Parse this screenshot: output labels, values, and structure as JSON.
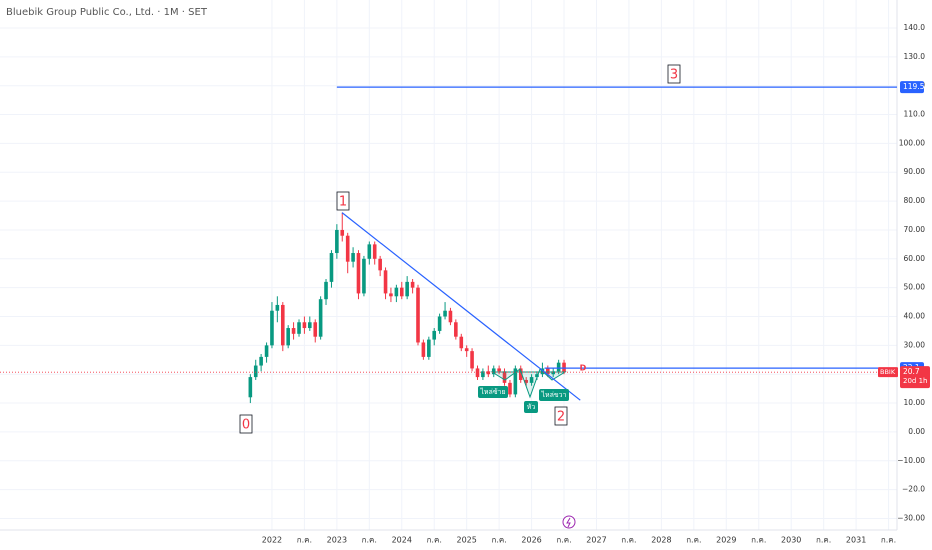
{
  "chart_data": {
    "type": "candlestick",
    "title": "Bluebik Group Public Co., Ltd. · 1M · SET",
    "symbol": "BBIK",
    "countdown": "20d 1h",
    "up_color": "#089981",
    "down_color": "#f23645",
    "line_color": "#2962ff",
    "xlim": [
      2017.81,
      2031.63
    ],
    "ylim": [
      -34,
      149.7
    ],
    "grid": true,
    "xticks": [
      {
        "value": 2022,
        "label": "2022"
      },
      {
        "value": 2022.5,
        "label": "ก.ค."
      },
      {
        "value": 2023,
        "label": "2023"
      },
      {
        "value": 2023.5,
        "label": "ก.ค."
      },
      {
        "value": 2024,
        "label": "2024"
      },
      {
        "value": 2024.5,
        "label": "ก.ค."
      },
      {
        "value": 2025,
        "label": "2025"
      },
      {
        "value": 2025.5,
        "label": "ก.ค."
      },
      {
        "value": 2026,
        "label": "2026"
      },
      {
        "value": 2026.5,
        "label": "ก.ค."
      },
      {
        "value": 2027,
        "label": "2027"
      },
      {
        "value": 2027.5,
        "label": "ก.ค."
      },
      {
        "value": 2028,
        "label": "2028"
      },
      {
        "value": 2028.5,
        "label": "ก.ค."
      },
      {
        "value": 2029,
        "label": "2029"
      },
      {
        "value": 2029.5,
        "label": "ก.ค."
      },
      {
        "value": 2030,
        "label": "2030"
      },
      {
        "value": 2030.5,
        "label": "ก.ค."
      },
      {
        "value": 2031,
        "label": "2031"
      },
      {
        "value": 2031.5,
        "label": "ก.ค."
      }
    ],
    "yticks": [
      {
        "value": 140,
        "label": "140.0"
      },
      {
        "value": 130,
        "label": "130.0"
      },
      {
        "value": 120,
        "label": "120.0"
      },
      {
        "value": 110,
        "label": "110.0"
      },
      {
        "value": 100,
        "label": "100.00"
      },
      {
        "value": 90,
        "label": "90.00"
      },
      {
        "value": 80,
        "label": "80.00"
      },
      {
        "value": 70,
        "label": "70.00"
      },
      {
        "value": 60,
        "label": "60.00"
      },
      {
        "value": 50,
        "label": "50.00"
      },
      {
        "value": 40,
        "label": "40.00"
      },
      {
        "value": 30,
        "label": "30.00"
      },
      {
        "value": 20,
        "label": "20.00"
      },
      {
        "value": 10,
        "label": "10.00"
      },
      {
        "value": 0,
        "label": "0.00"
      },
      {
        "value": -10,
        "label": "−10.00"
      },
      {
        "value": -20,
        "label": "−20.0"
      },
      {
        "value": -30,
        "label": "−30.00"
      }
    ],
    "candles": {
      "x": [
        2021.667,
        2021.75,
        2021.833,
        2021.917,
        2022.0,
        2022.083,
        2022.167,
        2022.25,
        2022.333,
        2022.417,
        2022.5,
        2022.583,
        2022.667,
        2022.75,
        2022.833,
        2022.917,
        2023.0,
        2023.083,
        2023.167,
        2023.25,
        2023.333,
        2023.417,
        2023.5,
        2023.583,
        2023.667,
        2023.75,
        2023.833,
        2023.917,
        2024.0,
        2024.083,
        2024.167,
        2024.25,
        2024.333,
        2024.417,
        2024.5,
        2024.583,
        2024.667,
        2024.75,
        2024.833,
        2024.917,
        2025.0,
        2025.083,
        2025.167,
        2025.25,
        2025.333,
        2025.417,
        2025.5,
        2025.583,
        2025.667,
        2025.75,
        2025.833,
        2025.917,
        2026.0,
        2026.083,
        2026.167,
        2026.25,
        2026.333,
        2026.417,
        2026.5
      ],
      "open": [
        12,
        19,
        23,
        26,
        30,
        42,
        44,
        30,
        36,
        34,
        38,
        36,
        38,
        33,
        46,
        52,
        62,
        70,
        68,
        59,
        62,
        48,
        60,
        65,
        60,
        56,
        48,
        47,
        50,
        47,
        52,
        50,
        31,
        26,
        32,
        35,
        40,
        42,
        38,
        33,
        29,
        28,
        22,
        19,
        21,
        20,
        22,
        21,
        17,
        13,
        22,
        18,
        17,
        19,
        20,
        22,
        20,
        21,
        24
      ],
      "high": [
        20,
        25,
        27,
        31,
        45,
        47,
        45,
        37,
        38,
        39,
        40,
        40,
        39,
        47,
        53,
        63,
        72,
        76,
        69,
        64,
        63,
        61,
        66,
        66,
        61,
        57,
        50,
        51,
        52,
        54,
        53,
        51,
        32,
        33,
        36,
        41,
        45,
        43,
        39,
        34,
        30,
        29,
        23,
        22,
        23,
        23,
        23,
        22,
        18,
        23,
        23,
        19,
        20,
        21,
        24,
        23,
        22,
        25,
        25
      ],
      "low": [
        10,
        18,
        21,
        24,
        29,
        38,
        28,
        29,
        32,
        33,
        34,
        35,
        31,
        32,
        44,
        50,
        60,
        66,
        55,
        57,
        46,
        47,
        58,
        58,
        54,
        46,
        45,
        45,
        46,
        46,
        48,
        30,
        25,
        25,
        30,
        34,
        39,
        37,
        32,
        28,
        26,
        21,
        18,
        18,
        19,
        19,
        20,
        16,
        12,
        12,
        17,
        16,
        16,
        18,
        19,
        19,
        19,
        20,
        20
      ],
      "close": [
        19,
        23,
        26,
        30,
        42,
        44,
        30,
        36,
        34,
        38,
        36,
        38,
        33,
        46,
        52,
        62,
        70,
        68,
        59,
        62,
        48,
        60,
        65,
        60,
        56,
        48,
        47,
        50,
        47,
        52,
        50,
        31,
        26,
        32,
        35,
        40,
        42,
        38,
        33,
        29,
        28,
        22,
        19,
        21,
        20,
        22,
        21,
        17,
        13,
        22,
        18,
        17,
        19,
        20,
        22,
        20,
        21,
        24,
        20.7
      ]
    },
    "levels": [
      {
        "value": 119.5,
        "start": 2023.0
      },
      {
        "value": 22.1,
        "start": 2026.2
      }
    ],
    "trendline": {
      "x": [
        2023.08,
        2026.75
      ],
      "y": [
        76,
        11
      ]
    },
    "wave_labels": [
      "0",
      "1",
      "2",
      "3"
    ],
    "pattern_labels": [
      "ไหล่ซ้าย",
      "หัว",
      "ไหล่ขวา"
    ],
    "marker": "D"
  }
}
